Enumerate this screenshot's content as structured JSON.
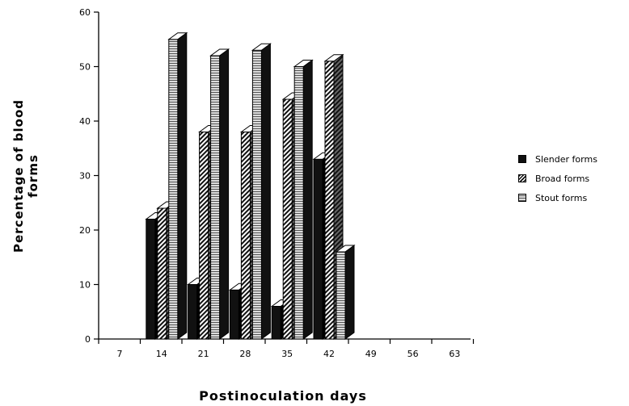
{
  "chart_data": {
    "type": "bar",
    "title": "",
    "xlabel": "Postinoculation days",
    "ylabel": "Percentage of blood forms",
    "categories": [
      "7",
      "14",
      "21",
      "28",
      "35",
      "42",
      "49",
      "56",
      "63"
    ],
    "ylim": [
      0,
      60
    ],
    "yticks": [
      "0",
      "10",
      "20",
      "30",
      "40",
      "50",
      "60"
    ],
    "series": [
      {
        "name": "Slender forms",
        "values": [
          0,
          22,
          10,
          9,
          6,
          33,
          0,
          0,
          0
        ]
      },
      {
        "name": "Broad forms",
        "values": [
          0,
          24,
          38,
          38,
          44,
          51,
          0,
          0,
          0
        ]
      },
      {
        "name": "Stout forms",
        "values": [
          0,
          55,
          52,
          53,
          50,
          16,
          0,
          0,
          0
        ]
      }
    ],
    "style": "3d-grouped",
    "legend": "right"
  }
}
